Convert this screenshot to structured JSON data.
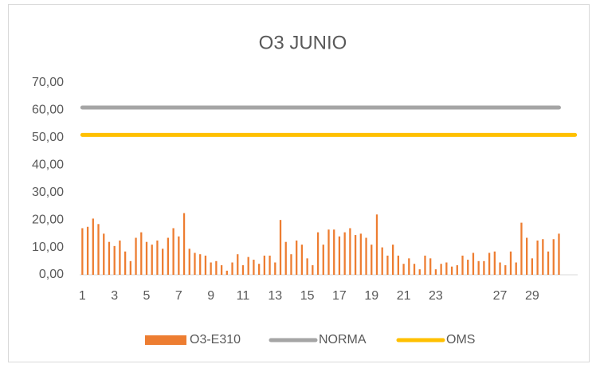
{
  "chart_data": {
    "type": "bar",
    "title": "O3 JUNIO",
    "categories": [
      "1",
      null,
      null,
      null,
      null,
      null,
      "3",
      null,
      null,
      null,
      null,
      null,
      "5",
      null,
      null,
      null,
      null,
      null,
      "7",
      null,
      null,
      null,
      null,
      null,
      "9",
      null,
      null,
      null,
      null,
      null,
      "11",
      null,
      null,
      null,
      null,
      null,
      "13",
      null,
      null,
      null,
      null,
      null,
      "15",
      null,
      null,
      null,
      null,
      null,
      "17",
      null,
      null,
      null,
      null,
      null,
      "19",
      null,
      null,
      null,
      null,
      null,
      "21",
      null,
      null,
      null,
      null,
      null,
      "23",
      null,
      null,
      null,
      null,
      null,
      null,
      null,
      null,
      null,
      null,
      null,
      "27",
      null,
      null,
      null,
      null,
      null,
      "29",
      null,
      null,
      null,
      null,
      null,
      null,
      null,
      null
    ],
    "series": [
      {
        "name": "O3-E310",
        "type": "bar",
        "color": "#ed7d31",
        "values": [
          17,
          17.5,
          20.5,
          18.5,
          15,
          12,
          10.5,
          12.5,
          8.5,
          5,
          13.5,
          15.5,
          12,
          11,
          12.5,
          9.5,
          13.5,
          17,
          14,
          22.5,
          9.5,
          8,
          7.5,
          7,
          4.5,
          5,
          3.5,
          1.5,
          4.5,
          7.5,
          3.5,
          6.5,
          5.5,
          4,
          7,
          7,
          4.5,
          20,
          12,
          7.5,
          12.5,
          11,
          6,
          3.5,
          15.5,
          11,
          16.5,
          16.5,
          14,
          15.5,
          17,
          14.5,
          15,
          13.5,
          11,
          22,
          10,
          7,
          11,
          7,
          4,
          6,
          4,
          2,
          7,
          6,
          2,
          4,
          4.5,
          3,
          3.5,
          7,
          5.5,
          8,
          5,
          5,
          8,
          8.5,
          4.5,
          3.5,
          8.5,
          4.5,
          19,
          13.5,
          6,
          12.5,
          13,
          8.5,
          13,
          15,
          null,
          null,
          null
        ]
      },
      {
        "name": "NORMA",
        "type": "line",
        "color": "#a5a5a5",
        "values": [
          61,
          61,
          61,
          61,
          61,
          61,
          61,
          61,
          61,
          61,
          61,
          61,
          61,
          61,
          61,
          61,
          61,
          61,
          61,
          61,
          61,
          61,
          61,
          61,
          61,
          61,
          61,
          61,
          61,
          61,
          61,
          61,
          61,
          61,
          61,
          61,
          61,
          61,
          61,
          61,
          61,
          61,
          61,
          61,
          61,
          61,
          61,
          61,
          61,
          61,
          61,
          61,
          61,
          61,
          61,
          61,
          61,
          61,
          61,
          61,
          61,
          61,
          61,
          61,
          61,
          61,
          61,
          61,
          61,
          61,
          61,
          61,
          61,
          61,
          61,
          61,
          61,
          61,
          61,
          61,
          61,
          61,
          61,
          61,
          61,
          61,
          61,
          61,
          61,
          61,
          null,
          null,
          null
        ]
      },
      {
        "name": "OMS",
        "type": "line",
        "color": "#ffc000",
        "values": [
          51,
          51,
          51,
          51,
          51,
          51,
          51,
          51,
          51,
          51,
          51,
          51,
          51,
          51,
          51,
          51,
          51,
          51,
          51,
          51,
          51,
          51,
          51,
          51,
          51,
          51,
          51,
          51,
          51,
          51,
          51,
          51,
          51,
          51,
          51,
          51,
          51,
          51,
          51,
          51,
          51,
          51,
          51,
          51,
          51,
          51,
          51,
          51,
          51,
          51,
          51,
          51,
          51,
          51,
          51,
          51,
          51,
          51,
          51,
          51,
          51,
          51,
          51,
          51,
          51,
          51,
          51,
          51,
          51,
          51,
          51,
          51,
          51,
          51,
          51,
          51,
          51,
          51,
          51,
          51,
          51,
          51,
          51,
          51,
          51,
          51,
          51,
          51,
          51,
          51,
          51,
          51,
          51
        ]
      }
    ],
    "ylim": [
      0,
      70
    ],
    "yticks": [
      {
        "value": 0,
        "label": "0,00"
      },
      {
        "value": 10,
        "label": "10,00"
      },
      {
        "value": 20,
        "label": "20,00"
      },
      {
        "value": 30,
        "label": "30,00"
      },
      {
        "value": 40,
        "label": "40,00"
      },
      {
        "value": 50,
        "label": "50,00"
      },
      {
        "value": 60,
        "label": "60,00"
      },
      {
        "value": 70,
        "label": "70,00"
      }
    ],
    "grid": false,
    "legend": "bottom"
  }
}
